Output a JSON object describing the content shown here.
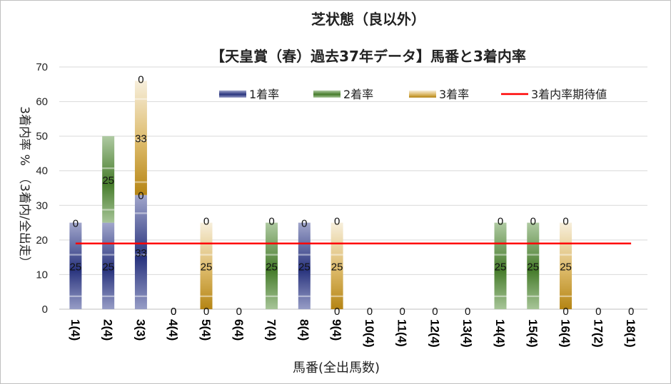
{
  "chart_data": {
    "type": "bar",
    "title": "芝状態（良以外）",
    "subtitle": "【天皇賞（春）過去37年データ】馬番と3着内率",
    "xlabel": "馬番(全出馬数)",
    "ylabel": "3着内率 %　（3着内/全出走）",
    "ylim": [
      0,
      70
    ],
    "yticks": [
      0,
      10,
      20,
      30,
      40,
      50,
      60,
      70
    ],
    "grid": true,
    "legend_position": "top",
    "categories": [
      "1(4)",
      "2(4)",
      "3(3)",
      "4(4)",
      "5(4)",
      "6(4)",
      "7(4)",
      "8(4)",
      "9(4)",
      "10(4)",
      "11(4)",
      "12(4)",
      "13(4)",
      "14(4)",
      "15(4)",
      "16(4)",
      "17(2)",
      "18(1)"
    ],
    "series": [
      {
        "name": "1着率",
        "color": "#2e3a8c",
        "values": [
          25,
          25,
          33,
          0,
          0,
          0,
          0,
          25,
          0,
          0,
          0,
          0,
          0,
          0,
          0,
          0,
          0,
          0
        ],
        "labels": [
          "25",
          "25",
          "33",
          "0",
          "",
          "",
          "",
          "25",
          "",
          "",
          "",
          "",
          "",
          "",
          "",
          "",
          "",
          ""
        ]
      },
      {
        "name": "2着率",
        "color": "#4e8a30",
        "values": [
          0,
          25,
          0,
          0,
          0,
          0,
          25,
          0,
          0,
          0,
          0,
          0,
          0,
          25,
          25,
          0,
          0,
          0
        ],
        "labels": [
          "0",
          "25",
          "0",
          "0",
          "0",
          "0",
          "25",
          "0",
          "0",
          "0",
          "0",
          "0",
          "0",
          "25",
          "25",
          "0",
          "0",
          "0"
        ]
      },
      {
        "name": "3着率",
        "color": "#c99416",
        "values": [
          0,
          0,
          33,
          0,
          25,
          0,
          0,
          0,
          25,
          0,
          0,
          0,
          0,
          0,
          0,
          25,
          0,
          0
        ],
        "labels": [
          "",
          "",
          "33",
          "",
          "25",
          "",
          "",
          "",
          "25",
          "",
          "",
          "",
          "",
          "",
          "",
          "25",
          "",
          ""
        ],
        "top_labels": [
          "",
          "",
          "0",
          "",
          "0",
          "",
          "0",
          "",
          "0",
          "",
          "",
          "",
          "",
          "0",
          "0",
          "0",
          "",
          ""
        ]
      },
      {
        "name": "3着内率期待値",
        "color": "#ff0000",
        "type": "line",
        "value": 19
      }
    ]
  }
}
